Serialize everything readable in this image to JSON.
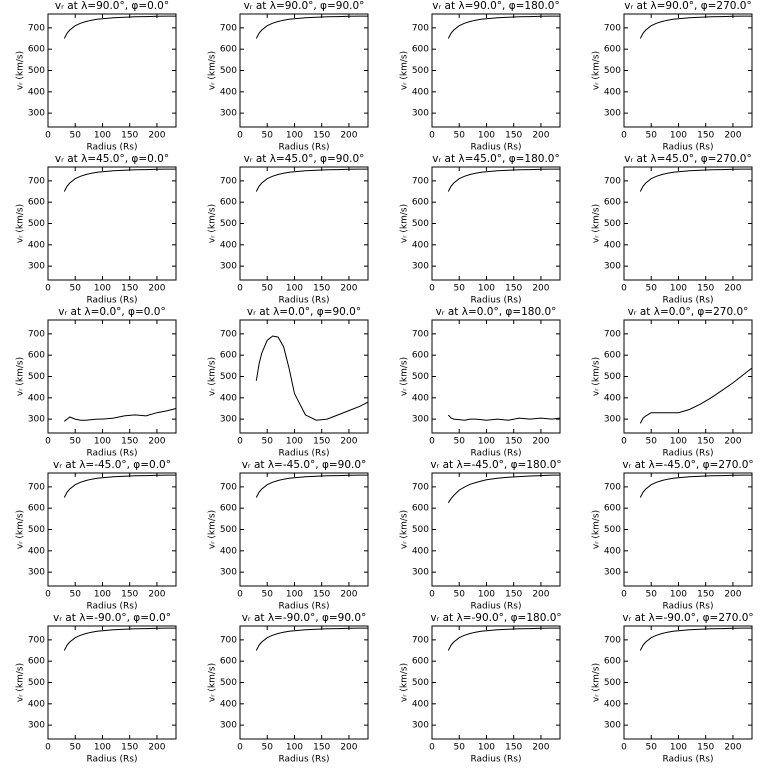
{
  "chart_data": [
    {
      "type": "line",
      "title": "vᵣ at λ=90.0°, φ=0.0°",
      "xlabel": "Radius (Rs)",
      "ylabel": "vᵣ (km/s)",
      "x": [
        30,
        35,
        40,
        50,
        60,
        70,
        80,
        90,
        100,
        120,
        140,
        160,
        180,
        200,
        220,
        235
      ],
      "values": [
        650,
        675,
        690,
        710,
        722,
        730,
        736,
        740,
        743,
        747,
        750,
        752,
        753,
        754,
        755,
        755
      ],
      "color": "#000000",
      "xlim": [
        0,
        235
      ],
      "ylim": [
        235,
        765
      ],
      "xticks": [
        0,
        50,
        100,
        150,
        200
      ],
      "yticks": [
        300,
        400,
        500,
        600,
        700
      ]
    },
    {
      "type": "line",
      "title": "vᵣ at λ=90.0°, φ=90.0°",
      "xlabel": "Radius (Rs)",
      "ylabel": "vᵣ (km/s)",
      "x": [
        30,
        35,
        40,
        50,
        60,
        70,
        80,
        90,
        100,
        120,
        140,
        160,
        180,
        200,
        220,
        235
      ],
      "values": [
        650,
        675,
        690,
        710,
        722,
        730,
        736,
        740,
        743,
        747,
        750,
        752,
        753,
        754,
        755,
        755
      ],
      "color": "#000000",
      "xlim": [
        0,
        235
      ],
      "ylim": [
        235,
        765
      ],
      "xticks": [
        0,
        50,
        100,
        150,
        200
      ],
      "yticks": [
        300,
        400,
        500,
        600,
        700
      ]
    },
    {
      "type": "line",
      "title": "vᵣ at λ=90.0°, φ=180.0°",
      "xlabel": "Radius (Rs)",
      "ylabel": "vᵣ (km/s)",
      "x": [
        30,
        35,
        40,
        50,
        60,
        70,
        80,
        90,
        100,
        120,
        140,
        160,
        180,
        200,
        220,
        235
      ],
      "values": [
        650,
        675,
        690,
        710,
        722,
        730,
        736,
        740,
        743,
        747,
        750,
        752,
        753,
        754,
        755,
        755
      ],
      "color": "#000000",
      "xlim": [
        0,
        235
      ],
      "ylim": [
        235,
        765
      ],
      "xticks": [
        0,
        50,
        100,
        150,
        200
      ],
      "yticks": [
        300,
        400,
        500,
        600,
        700
      ]
    },
    {
      "type": "line",
      "title": "vᵣ at λ=90.0°, φ=270.0°",
      "xlabel": "Radius (Rs)",
      "ylabel": "vᵣ (km/s)",
      "x": [
        30,
        35,
        40,
        50,
        60,
        70,
        80,
        90,
        100,
        120,
        140,
        160,
        180,
        200,
        220,
        235
      ],
      "values": [
        650,
        675,
        690,
        710,
        722,
        730,
        736,
        740,
        743,
        747,
        750,
        752,
        753,
        754,
        755,
        755
      ],
      "color": "#000000",
      "xlim": [
        0,
        235
      ],
      "ylim": [
        235,
        765
      ],
      "xticks": [
        0,
        50,
        100,
        150,
        200
      ],
      "yticks": [
        300,
        400,
        500,
        600,
        700
      ]
    },
    {
      "type": "line",
      "title": "vᵣ at λ=45.0°, φ=0.0°",
      "xlabel": "Radius (Rs)",
      "ylabel": "vᵣ (km/s)",
      "x": [
        30,
        35,
        40,
        50,
        60,
        70,
        80,
        90,
        100,
        120,
        140,
        160,
        180,
        200,
        220,
        235
      ],
      "values": [
        650,
        675,
        690,
        710,
        722,
        730,
        736,
        740,
        743,
        747,
        750,
        752,
        753,
        754,
        755,
        755
      ],
      "color": "#000000",
      "xlim": [
        0,
        235
      ],
      "ylim": [
        235,
        765
      ],
      "xticks": [
        0,
        50,
        100,
        150,
        200
      ],
      "yticks": [
        300,
        400,
        500,
        600,
        700
      ]
    },
    {
      "type": "line",
      "title": "vᵣ at λ=45.0°, φ=90.0°",
      "xlabel": "Radius (Rs)",
      "ylabel": "vᵣ (km/s)",
      "x": [
        30,
        35,
        40,
        50,
        60,
        70,
        80,
        90,
        100,
        120,
        140,
        160,
        180,
        200,
        220,
        235
      ],
      "values": [
        650,
        675,
        690,
        710,
        722,
        730,
        736,
        740,
        743,
        747,
        750,
        752,
        753,
        754,
        755,
        755
      ],
      "color": "#000000",
      "xlim": [
        0,
        235
      ],
      "ylim": [
        235,
        765
      ],
      "xticks": [
        0,
        50,
        100,
        150,
        200
      ],
      "yticks": [
        300,
        400,
        500,
        600,
        700
      ]
    },
    {
      "type": "line",
      "title": "vᵣ at λ=45.0°, φ=180.0°",
      "xlabel": "Radius (Rs)",
      "ylabel": "vᵣ (km/s)",
      "x": [
        30,
        35,
        40,
        50,
        60,
        70,
        80,
        90,
        100,
        120,
        140,
        160,
        180,
        200,
        220,
        235
      ],
      "values": [
        650,
        675,
        690,
        710,
        722,
        730,
        736,
        740,
        743,
        747,
        750,
        752,
        753,
        754,
        755,
        755
      ],
      "color": "#000000",
      "xlim": [
        0,
        235
      ],
      "ylim": [
        235,
        765
      ],
      "xticks": [
        0,
        50,
        100,
        150,
        200
      ],
      "yticks": [
        300,
        400,
        500,
        600,
        700
      ]
    },
    {
      "type": "line",
      "title": "vᵣ at λ=45.0°, φ=270.0°",
      "xlabel": "Radius (Rs)",
      "ylabel": "vᵣ (km/s)",
      "x": [
        30,
        35,
        40,
        50,
        60,
        70,
        80,
        90,
        100,
        120,
        140,
        160,
        180,
        200,
        220,
        235
      ],
      "values": [
        650,
        675,
        690,
        710,
        722,
        730,
        736,
        740,
        743,
        747,
        750,
        752,
        753,
        754,
        755,
        755
      ],
      "color": "#000000",
      "xlim": [
        0,
        235
      ],
      "ylim": [
        235,
        765
      ],
      "xticks": [
        0,
        50,
        100,
        150,
        200
      ],
      "yticks": [
        300,
        400,
        500,
        600,
        700
      ]
    },
    {
      "type": "line",
      "title": "vᵣ at λ=0.0°, φ=0.0°",
      "xlabel": "Radius (Rs)",
      "ylabel": "vᵣ (km/s)",
      "x": [
        30,
        35,
        40,
        50,
        60,
        70,
        80,
        90,
        100,
        120,
        140,
        160,
        180,
        200,
        220,
        235
      ],
      "values": [
        290,
        300,
        310,
        300,
        295,
        295,
        298,
        300,
        300,
        305,
        315,
        320,
        315,
        330,
        340,
        350
      ],
      "color": "#000000",
      "xlim": [
        0,
        235
      ],
      "ylim": [
        235,
        765
      ],
      "xticks": [
        0,
        50,
        100,
        150,
        200
      ],
      "yticks": [
        300,
        400,
        500,
        600,
        700
      ]
    },
    {
      "type": "line",
      "title": "vᵣ at λ=0.0°, φ=90.0°",
      "xlabel": "Radius (Rs)",
      "ylabel": "vᵣ (km/s)",
      "x": [
        30,
        35,
        40,
        50,
        60,
        70,
        80,
        90,
        100,
        120,
        140,
        160,
        180,
        200,
        220,
        235
      ],
      "values": [
        480,
        560,
        610,
        670,
        690,
        685,
        640,
        540,
        420,
        320,
        295,
        300,
        320,
        340,
        360,
        380
      ],
      "color": "#000000",
      "xlim": [
        0,
        235
      ],
      "ylim": [
        235,
        765
      ],
      "xticks": [
        0,
        50,
        100,
        150,
        200
      ],
      "yticks": [
        300,
        400,
        500,
        600,
        700
      ]
    },
    {
      "type": "line",
      "title": "vᵣ at λ=0.0°, φ=180.0°",
      "xlabel": "Radius (Rs)",
      "ylabel": "vᵣ (km/s)",
      "x": [
        30,
        35,
        40,
        50,
        60,
        70,
        80,
        90,
        100,
        120,
        140,
        160,
        180,
        200,
        220,
        235
      ],
      "values": [
        320,
        305,
        300,
        298,
        295,
        300,
        300,
        298,
        295,
        300,
        295,
        305,
        300,
        305,
        300,
        305
      ],
      "color": "#000000",
      "xlim": [
        0,
        235
      ],
      "ylim": [
        235,
        765
      ],
      "xticks": [
        0,
        50,
        100,
        150,
        200
      ],
      "yticks": [
        300,
        400,
        500,
        600,
        700
      ]
    },
    {
      "type": "line",
      "title": "vᵣ at λ=0.0°, φ=270.0°",
      "xlabel": "Radius (Rs)",
      "ylabel": "vᵣ (km/s)",
      "x": [
        30,
        35,
        40,
        50,
        60,
        70,
        80,
        90,
        100,
        120,
        140,
        160,
        180,
        200,
        220,
        235
      ],
      "values": [
        280,
        305,
        315,
        330,
        330,
        330,
        330,
        330,
        330,
        345,
        370,
        400,
        435,
        470,
        510,
        540
      ],
      "color": "#000000",
      "xlim": [
        0,
        235
      ],
      "ylim": [
        235,
        765
      ],
      "xticks": [
        0,
        50,
        100,
        150,
        200
      ],
      "yticks": [
        300,
        400,
        500,
        600,
        700
      ]
    },
    {
      "type": "line",
      "title": "vᵣ at λ=-45.0°, φ=0.0°",
      "xlabel": "Radius (Rs)",
      "ylabel": "vᵣ (km/s)",
      "x": [
        30,
        35,
        40,
        50,
        60,
        70,
        80,
        90,
        100,
        120,
        140,
        160,
        180,
        200,
        220,
        235
      ],
      "values": [
        650,
        675,
        690,
        710,
        722,
        730,
        736,
        740,
        743,
        747,
        750,
        752,
        753,
        754,
        755,
        755
      ],
      "color": "#000000",
      "xlim": [
        0,
        235
      ],
      "ylim": [
        235,
        765
      ],
      "xticks": [
        0,
        50,
        100,
        150,
        200
      ],
      "yticks": [
        300,
        400,
        500,
        600,
        700
      ]
    },
    {
      "type": "line",
      "title": "vᵣ at λ=-45.0°, φ=90.0°",
      "xlabel": "Radius (Rs)",
      "ylabel": "vᵣ (km/s)",
      "x": [
        30,
        35,
        40,
        50,
        60,
        70,
        80,
        90,
        100,
        120,
        140,
        160,
        180,
        200,
        220,
        235
      ],
      "values": [
        650,
        675,
        690,
        710,
        722,
        730,
        736,
        740,
        743,
        747,
        750,
        752,
        753,
        754,
        755,
        755
      ],
      "color": "#000000",
      "xlim": [
        0,
        235
      ],
      "ylim": [
        235,
        765
      ],
      "xticks": [
        0,
        50,
        100,
        150,
        200
      ],
      "yticks": [
        300,
        400,
        500,
        600,
        700
      ]
    },
    {
      "type": "line",
      "title": "vᵣ at λ=-45.0°, φ=180.0°",
      "xlabel": "Radius (Rs)",
      "ylabel": "vᵣ (km/s)",
      "x": [
        30,
        35,
        40,
        50,
        60,
        70,
        80,
        90,
        100,
        120,
        140,
        160,
        180,
        200,
        220,
        235
      ],
      "values": [
        625,
        645,
        660,
        685,
        700,
        712,
        720,
        727,
        733,
        740,
        745,
        748,
        751,
        753,
        755,
        755
      ],
      "color": "#000000",
      "xlim": [
        0,
        235
      ],
      "ylim": [
        235,
        765
      ],
      "xticks": [
        0,
        50,
        100,
        150,
        200
      ],
      "yticks": [
        300,
        400,
        500,
        600,
        700
      ]
    },
    {
      "type": "line",
      "title": "vᵣ at λ=-45.0°, φ=270.0°",
      "xlabel": "Radius (Rs)",
      "ylabel": "vᵣ (km/s)",
      "x": [
        30,
        35,
        40,
        50,
        60,
        70,
        80,
        90,
        100,
        120,
        140,
        160,
        180,
        200,
        220,
        235
      ],
      "values": [
        650,
        675,
        690,
        710,
        722,
        730,
        736,
        740,
        743,
        747,
        750,
        752,
        753,
        754,
        755,
        755
      ],
      "color": "#000000",
      "xlim": [
        0,
        235
      ],
      "ylim": [
        235,
        765
      ],
      "xticks": [
        0,
        50,
        100,
        150,
        200
      ],
      "yticks": [
        300,
        400,
        500,
        600,
        700
      ]
    },
    {
      "type": "line",
      "title": "vᵣ at λ=-90.0°, φ=0.0°",
      "xlabel": "Radius (Rs)",
      "ylabel": "vᵣ (km/s)",
      "x": [
        30,
        35,
        40,
        50,
        60,
        70,
        80,
        90,
        100,
        120,
        140,
        160,
        180,
        200,
        220,
        235
      ],
      "values": [
        650,
        675,
        690,
        710,
        722,
        730,
        736,
        740,
        743,
        747,
        750,
        752,
        753,
        754,
        755,
        755
      ],
      "color": "#000000",
      "xlim": [
        0,
        235
      ],
      "ylim": [
        235,
        765
      ],
      "xticks": [
        0,
        50,
        100,
        150,
        200
      ],
      "yticks": [
        300,
        400,
        500,
        600,
        700
      ]
    },
    {
      "type": "line",
      "title": "vᵣ at λ=-90.0°, φ=90.0°",
      "xlabel": "Radius (Rs)",
      "ylabel": "vᵣ (km/s)",
      "x": [
        30,
        35,
        40,
        50,
        60,
        70,
        80,
        90,
        100,
        120,
        140,
        160,
        180,
        200,
        220,
        235
      ],
      "values": [
        650,
        675,
        690,
        710,
        722,
        730,
        736,
        740,
        743,
        747,
        750,
        752,
        753,
        754,
        755,
        755
      ],
      "color": "#000000",
      "xlim": [
        0,
        235
      ],
      "ylim": [
        235,
        765
      ],
      "xticks": [
        0,
        50,
        100,
        150,
        200
      ],
      "yticks": [
        300,
        400,
        500,
        600,
        700
      ]
    },
    {
      "type": "line",
      "title": "vᵣ at λ=-90.0°, φ=180.0°",
      "xlabel": "Radius (Rs)",
      "ylabel": "vᵣ (km/s)",
      "x": [
        30,
        35,
        40,
        50,
        60,
        70,
        80,
        90,
        100,
        120,
        140,
        160,
        180,
        200,
        220,
        235
      ],
      "values": [
        650,
        675,
        690,
        710,
        722,
        730,
        736,
        740,
        743,
        747,
        750,
        752,
        753,
        754,
        755,
        755
      ],
      "color": "#000000",
      "xlim": [
        0,
        235
      ],
      "ylim": [
        235,
        765
      ],
      "xticks": [
        0,
        50,
        100,
        150,
        200
      ],
      "yticks": [
        300,
        400,
        500,
        600,
        700
      ]
    },
    {
      "type": "line",
      "title": "vᵣ at λ=-90.0°, φ=270.0°",
      "xlabel": "Radius (Rs)",
      "ylabel": "vᵣ (km/s)",
      "x": [
        30,
        35,
        40,
        50,
        60,
        70,
        80,
        90,
        100,
        120,
        140,
        160,
        180,
        200,
        220,
        235
      ],
      "values": [
        650,
        675,
        690,
        710,
        722,
        730,
        736,
        740,
        743,
        747,
        750,
        752,
        753,
        754,
        755,
        755
      ],
      "color": "#000000",
      "xlim": [
        0,
        235
      ],
      "ylim": [
        235,
        765
      ],
      "xticks": [
        0,
        50,
        100,
        150,
        200
      ],
      "yticks": [
        300,
        400,
        500,
        600,
        700
      ]
    }
  ]
}
